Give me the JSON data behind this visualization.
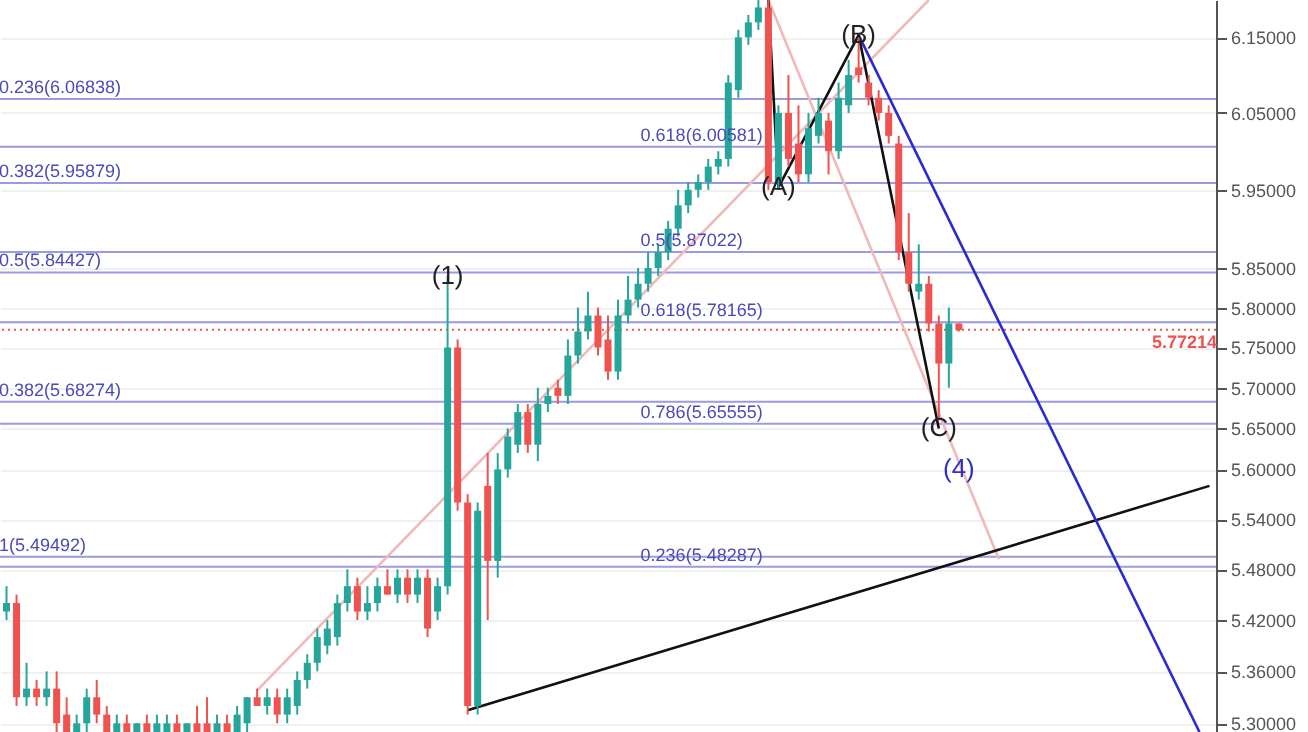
{
  "chart_data": {
    "type": "candlestick",
    "categories": [
      null,
      null,
      null,
      null,
      null,
      null,
      null,
      null,
      null,
      null,
      null,
      null,
      null,
      null,
      null,
      null,
      null,
      null,
      null,
      null,
      null,
      null,
      null,
      null,
      null,
      null,
      null,
      null,
      null,
      null,
      null,
      null,
      null,
      null,
      null,
      null,
      null,
      null,
      null,
      null,
      null,
      null,
      null,
      null,
      null,
      null,
      null,
      null,
      null,
      null,
      null,
      null,
      null,
      null,
      null,
      null,
      null,
      null,
      null,
      null,
      null,
      null,
      null,
      null,
      null,
      null,
      null,
      null,
      null,
      null,
      null,
      null,
      null,
      null,
      null,
      null,
      null,
      null,
      null,
      null,
      null,
      null,
      null,
      null,
      null,
      null,
      null,
      null,
      null,
      null,
      null,
      null,
      null,
      null,
      null,
      null,
      null,
      null,
      null,
      null,
      null,
      null,
      null,
      null,
      null,
      null,
      null,
      null,
      null,
      null,
      null,
      null,
      null,
      null,
      null,
      null,
      null,
      null,
      null,
      null,
      null
    ],
    "ohlc": [
      [
        5.43,
        5.46,
        5.42,
        5.44
      ],
      [
        5.44,
        5.45,
        5.32,
        5.33
      ],
      [
        5.33,
        5.37,
        5.32,
        5.34
      ],
      [
        5.34,
        5.35,
        5.32,
        5.33
      ],
      [
        5.33,
        5.36,
        5.32,
        5.34
      ],
      [
        5.34,
        5.36,
        5.29,
        5.3
      ],
      [
        5.31,
        5.33,
        5.29,
        5.29
      ],
      [
        5.29,
        5.31,
        5.29,
        5.3
      ],
      [
        5.3,
        5.34,
        5.29,
        5.33
      ],
      [
        5.33,
        5.35,
        5.3,
        5.31
      ],
      [
        5.31,
        5.32,
        5.29,
        5.29
      ],
      [
        5.29,
        5.31,
        5.29,
        5.3
      ],
      [
        5.3,
        5.31,
        5.29,
        5.29
      ],
      [
        5.29,
        5.3,
        5.29,
        5.3
      ],
      [
        5.3,
        5.31,
        5.29,
        5.29
      ],
      [
        5.29,
        5.31,
        5.29,
        5.3
      ],
      [
        5.29,
        5.31,
        5.29,
        5.3
      ],
      [
        5.3,
        5.31,
        5.29,
        5.29
      ],
      [
        5.29,
        5.3,
        5.29,
        5.3
      ],
      [
        5.3,
        5.32,
        5.29,
        5.29
      ],
      [
        5.3,
        5.33,
        5.29,
        5.29
      ],
      [
        5.29,
        5.31,
        5.29,
        5.3
      ],
      [
        5.3,
        5.31,
        5.29,
        5.29
      ],
      [
        5.29,
        5.32,
        5.29,
        5.31
      ],
      [
        5.3,
        5.33,
        5.29,
        5.33
      ],
      [
        5.33,
        5.34,
        5.32,
        5.32
      ],
      [
        5.32,
        5.34,
        5.31,
        5.33
      ],
      [
        5.33,
        5.34,
        5.3,
        5.31
      ],
      [
        5.31,
        5.34,
        5.3,
        5.33
      ],
      [
        5.32,
        5.36,
        5.31,
        5.35
      ],
      [
        5.35,
        5.38,
        5.34,
        5.37
      ],
      [
        5.37,
        5.41,
        5.36,
        5.4
      ],
      [
        5.39,
        5.42,
        5.38,
        5.41
      ],
      [
        5.4,
        5.45,
        5.39,
        5.44
      ],
      [
        5.44,
        5.48,
        5.43,
        5.46
      ],
      [
        5.46,
        5.47,
        5.42,
        5.43
      ],
      [
        5.43,
        5.46,
        5.42,
        5.44
      ],
      [
        5.44,
        5.47,
        5.43,
        5.46
      ],
      [
        5.46,
        5.48,
        5.45,
        5.45
      ],
      [
        5.45,
        5.48,
        5.44,
        5.47
      ],
      [
        5.47,
        5.48,
        5.44,
        5.45
      ],
      [
        5.45,
        5.48,
        5.44,
        5.47
      ],
      [
        5.47,
        5.48,
        5.4,
        5.41
      ],
      [
        5.43,
        5.47,
        5.42,
        5.46
      ],
      [
        5.46,
        5.84,
        5.45,
        5.75
      ],
      [
        5.75,
        5.76,
        5.55,
        5.56
      ],
      [
        5.56,
        5.57,
        5.31,
        5.32
      ],
      [
        5.32,
        5.56,
        5.31,
        5.55
      ],
      [
        5.58,
        5.62,
        5.42,
        5.49
      ],
      [
        5.49,
        5.62,
        5.47,
        5.6
      ],
      [
        5.6,
        5.65,
        5.59,
        5.64
      ],
      [
        5.63,
        5.68,
        5.62,
        5.67
      ],
      [
        5.67,
        5.68,
        5.62,
        5.63
      ],
      [
        5.63,
        5.7,
        5.61,
        5.68
      ],
      [
        5.68,
        5.7,
        5.67,
        5.69
      ],
      [
        5.7,
        5.71,
        5.68,
        5.69
      ],
      [
        5.69,
        5.76,
        5.68,
        5.74
      ],
      [
        5.74,
        5.8,
        5.73,
        5.77
      ],
      [
        5.77,
        5.82,
        5.76,
        5.79
      ],
      [
        5.79,
        5.8,
        5.74,
        5.75
      ],
      [
        5.76,
        5.79,
        5.71,
        5.72
      ],
      [
        5.72,
        5.81,
        5.71,
        5.79
      ],
      [
        5.79,
        5.84,
        5.78,
        5.81
      ],
      [
        5.81,
        5.85,
        5.8,
        5.83
      ],
      [
        5.83,
        5.87,
        5.82,
        5.85
      ],
      [
        5.85,
        5.88,
        5.84,
        5.87
      ],
      [
        5.87,
        5.91,
        5.86,
        5.9
      ],
      [
        5.9,
        5.95,
        5.89,
        5.93
      ],
      [
        5.93,
        5.96,
        5.92,
        5.95
      ],
      [
        5.95,
        5.97,
        5.94,
        5.96
      ],
      [
        5.96,
        5.99,
        5.95,
        5.98
      ],
      [
        5.98,
        6.0,
        5.97,
        5.99
      ],
      [
        5.99,
        6.1,
        5.98,
        6.09
      ],
      [
        6.08,
        6.16,
        6.07,
        6.15
      ],
      [
        6.15,
        6.18,
        6.14,
        6.17
      ],
      [
        6.17,
        6.2,
        6.16,
        6.19
      ],
      [
        6.19,
        6.2,
        5.95,
        5.96
      ],
      [
        5.96,
        6.06,
        5.95,
        6.05
      ],
      [
        6.05,
        6.1,
        5.98,
        5.99
      ],
      [
        6.01,
        6.06,
        5.96,
        5.97
      ],
      [
        5.97,
        6.05,
        5.96,
        6.03
      ],
      [
        6.02,
        6.07,
        6.01,
        6.05
      ],
      [
        6.04,
        6.05,
        5.97,
        6.0
      ],
      [
        6.0,
        6.09,
        5.99,
        6.07
      ],
      [
        6.06,
        6.12,
        6.05,
        6.1
      ],
      [
        6.11,
        6.15,
        6.09,
        6.1
      ],
      [
        6.09,
        6.1,
        6.06,
        6.07
      ],
      [
        6.07,
        6.08,
        6.04,
        6.05
      ],
      [
        6.05,
        6.06,
        6.01,
        6.02
      ],
      [
        6.01,
        6.02,
        5.86,
        5.87
      ],
      [
        5.87,
        5.92,
        5.82,
        5.83
      ],
      [
        5.82,
        5.88,
        5.81,
        5.83
      ],
      [
        5.83,
        5.84,
        5.77,
        5.78
      ],
      [
        5.78,
        5.79,
        5.66,
        5.73
      ],
      [
        5.73,
        5.8,
        5.7,
        5.78
      ],
      [
        5.78,
        5.78,
        5.77,
        5.772
      ],
      null,
      null,
      null,
      null,
      null,
      null,
      null,
      null,
      null,
      null,
      null,
      null,
      null,
      null,
      null,
      null,
      null,
      null,
      null,
      null,
      null,
      null,
      null,
      null,
      null
    ],
    "colors": [
      "#26a69a",
      "#ef5350",
      "#26a69a",
      "#ef5350",
      "#26a69a",
      "#ef5350",
      "#ef5350",
      "#26a69a",
      "#26a69a",
      "#ef5350",
      "#ef5350",
      "#26a69a",
      "#ef5350",
      "#26a69a",
      "#ef5350",
      "#26a69a",
      "#26a69a",
      "#ef5350",
      "#26a69a",
      "#ef5350",
      "#ef5350",
      "#26a69a",
      "#ef5350",
      "#26a69a",
      "#26a69a",
      "#ef5350",
      "#26a69a",
      "#ef5350",
      "#26a69a",
      "#26a69a",
      "#26a69a",
      "#26a69a",
      "#26a69a",
      "#26a69a",
      "#26a69a",
      "#ef5350",
      "#26a69a",
      "#26a69a",
      "#ef5350",
      "#26a69a",
      "#ef5350",
      "#26a69a",
      "#ef5350",
      "#26a69a",
      "#26a69a",
      "#ef5350",
      "#ef5350",
      "#26a69a",
      "#ef5350",
      "#26a69a",
      "#26a69a",
      "#26a69a",
      "#ef5350",
      "#26a69a",
      "#26a69a",
      "#ef5350",
      "#26a69a",
      "#26a69a",
      "#26a69a",
      "#ef5350",
      "#ef5350",
      "#26a69a",
      "#26a69a",
      "#26a69a",
      "#26a69a",
      "#26a69a",
      "#26a69a",
      "#26a69a",
      "#26a69a",
      "#26a69a",
      "#26a69a",
      "#26a69a",
      "#26a69a",
      "#26a69a",
      "#26a69a",
      "#26a69a",
      "#ef5350",
      "#26a69a",
      "#ef5350",
      "#ef5350",
      "#26a69a",
      "#26a69a",
      "#ef5350",
      "#26a69a",
      "#26a69a",
      "#ef5350",
      "#ef5350",
      "#ef5350",
      "#ef5350",
      "#ef5350",
      "#ef5350",
      "#26a69a",
      "#ef5350",
      "#ef5350",
      "#26a69a",
      "#ef5350",
      null,
      null,
      null,
      null,
      null,
      null,
      null,
      null,
      null,
      null,
      null,
      null,
      null,
      null,
      null,
      null,
      null,
      null,
      null,
      null,
      null,
      null,
      null,
      null,
      null
    ],
    "value_labels": [
      null,
      null,
      null,
      null,
      null,
      null,
      null,
      null,
      null,
      null,
      null,
      null,
      null,
      null,
      null,
      null,
      null,
      null,
      null,
      null,
      null,
      null,
      null,
      null,
      null,
      null,
      null,
      null,
      null,
      null,
      null,
      null,
      null,
      null,
      null,
      null,
      null,
      null,
      null,
      null,
      null,
      null,
      null,
      null,
      "(1)",
      null,
      null,
      null,
      null,
      null,
      null,
      null,
      null,
      null,
      null,
      null,
      null,
      null,
      null,
      null,
      null,
      null,
      null,
      null,
      null,
      null,
      null,
      null,
      null,
      null,
      null,
      null,
      null,
      null,
      null,
      null,
      null,
      null,
      null,
      null,
      null,
      null,
      null,
      null,
      null,
      null,
      null,
      null,
      null,
      null,
      null,
      null,
      null,
      null,
      null,
      null,
      null,
      null,
      null,
      null,
      null,
      null,
      null,
      null,
      null,
      null,
      null,
      null,
      null,
      null,
      null,
      null,
      null,
      null,
      null,
      null,
      null,
      null,
      null,
      null,
      null
    ],
    "series": [
      {
        "type": "line",
        "color": "#f2b8b8",
        "values": [
          null,
          null,
          null,
          null,
          null,
          null,
          null,
          null,
          null,
          null,
          null,
          null,
          null,
          null,
          null,
          null,
          null,
          null,
          null,
          null,
          null,
          null,
          null,
          null,
          null,
          5.338,
          null,
          null,
          null,
          null,
          null,
          null,
          null,
          null,
          null,
          null,
          null,
          null,
          null,
          null,
          null,
          null,
          null,
          null,
          null,
          null,
          null,
          null,
          null,
          null,
          null,
          null,
          null,
          null,
          null,
          null,
          null,
          null,
          null,
          null,
          null,
          null,
          null,
          null,
          null,
          null,
          null,
          null,
          null,
          null,
          null,
          null,
          null,
          null,
          null,
          null,
          null,
          null,
          null,
          null,
          null,
          null,
          null,
          null,
          null,
          null,
          null,
          null,
          null,
          null,
          null,
          null,
          6.2,
          null,
          null,
          null,
          null,
          null,
          null,
          null,
          null,
          null,
          null,
          null,
          null,
          null,
          null,
          null,
          null,
          null,
          null,
          null,
          null,
          null,
          null,
          null,
          null,
          null,
          null,
          null,
          null
        ]
      },
      {
        "type": "line",
        "color": "#f2b8b8",
        "values": [
          null,
          null,
          null,
          null,
          null,
          null,
          null,
          null,
          null,
          null,
          null,
          null,
          null,
          null,
          null,
          null,
          null,
          null,
          null,
          null,
          null,
          null,
          null,
          null,
          null,
          null,
          null,
          null,
          null,
          null,
          null,
          null,
          null,
          null,
          null,
          null,
          null,
          null,
          null,
          null,
          null,
          null,
          null,
          null,
          null,
          null,
          null,
          null,
          null,
          null,
          null,
          null,
          null,
          null,
          null,
          null,
          null,
          null,
          null,
          null,
          null,
          null,
          null,
          null,
          null,
          null,
          null,
          null,
          null,
          null,
          null,
          null,
          null,
          null,
          null,
          null,
          6.2,
          null,
          null,
          null,
          null,
          null,
          null,
          null,
          null,
          null,
          null,
          null,
          null,
          null,
          null,
          null,
          null,
          null,
          null,
          null,
          null,
          null,
          null,
          5.492,
          null,
          null,
          null,
          null,
          null,
          null,
          null,
          null,
          null,
          null,
          null,
          null,
          null,
          null,
          null,
          null,
          null,
          null,
          null,
          null,
          null
        ]
      },
      {
        "type": "line",
        "color": "#111111",
        "values": [
          null,
          null,
          null,
          null,
          null,
          null,
          null,
          null,
          null,
          null,
          null,
          null,
          null,
          null,
          null,
          null,
          null,
          null,
          null,
          null,
          null,
          null,
          null,
          null,
          null,
          null,
          null,
          null,
          null,
          null,
          null,
          null,
          null,
          null,
          null,
          null,
          null,
          null,
          null,
          null,
          null,
          null,
          null,
          null,
          null,
          null,
          5.315,
          null,
          null,
          null,
          null,
          null,
          null,
          null,
          null,
          null,
          null,
          null,
          null,
          null,
          null,
          null,
          null,
          null,
          null,
          null,
          null,
          null,
          null,
          null,
          null,
          null,
          null,
          null,
          null,
          null,
          null,
          null,
          null,
          null,
          null,
          null,
          null,
          null,
          null,
          null,
          null,
          null,
          null,
          null,
          null,
          null,
          null,
          null,
          null,
          null,
          null,
          null,
          null,
          null,
          null,
          null,
          null,
          null,
          null,
          null,
          null,
          null,
          null,
          null,
          null,
          null,
          null,
          null,
          null,
          null,
          null,
          null,
          null,
          null,
          5.58
        ]
      },
      {
        "type": "line",
        "color": "#2a2ad0",
        "values": [
          null,
          null,
          null,
          null,
          null,
          null,
          null,
          null,
          null,
          null,
          null,
          null,
          null,
          null,
          null,
          null,
          null,
          null,
          null,
          null,
          null,
          null,
          null,
          null,
          null,
          null,
          null,
          null,
          null,
          null,
          null,
          null,
          null,
          null,
          null,
          null,
          null,
          null,
          null,
          null,
          null,
          null,
          null,
          null,
          null,
          null,
          null,
          null,
          null,
          null,
          null,
          null,
          null,
          null,
          null,
          null,
          null,
          null,
          null,
          null,
          null,
          null,
          null,
          null,
          null,
          null,
          null,
          null,
          null,
          null,
          null,
          null,
          null,
          null,
          null,
          null,
          null,
          null,
          null,
          null,
          null,
          null,
          null,
          null,
          null,
          6.153,
          null,
          null,
          null,
          null,
          null,
          null,
          null,
          null,
          null,
          null,
          null,
          null,
          null,
          null,
          null,
          null,
          null,
          null,
          null,
          null,
          null,
          null,
          null,
          null,
          null,
          null,
          null,
          null,
          null,
          null,
          null,
          null,
          null,
          5.29,
          null
        ]
      },
      {
        "type": "line",
        "color": "#111111",
        "values": [
          null,
          null,
          null,
          null,
          null,
          null,
          null,
          null,
          null,
          null,
          null,
          null,
          null,
          null,
          null,
          null,
          null,
          null,
          null,
          null,
          null,
          null,
          null,
          null,
          null,
          null,
          null,
          null,
          null,
          null,
          null,
          null,
          null,
          null,
          null,
          null,
          null,
          null,
          null,
          null,
          null,
          null,
          null,
          null,
          null,
          null,
          null,
          null,
          null,
          null,
          null,
          null,
          null,
          null,
          null,
          null,
          null,
          null,
          null,
          null,
          null,
          null,
          null,
          null,
          null,
          null,
          null,
          null,
          null,
          null,
          null,
          null,
          null,
          null,
          null,
          null,
          6.2,
          5.953,
          null,
          null,
          null,
          null,
          null,
          null,
          null,
          6.153,
          null,
          null,
          null,
          null,
          null,
          null,
          null,
          5.65,
          null,
          null,
          null,
          null,
          null,
          null,
          null,
          null,
          null,
          null,
          null,
          null,
          null,
          null,
          null,
          null,
          null,
          null,
          null,
          null,
          null,
          null,
          null,
          null,
          null,
          null,
          null
        ],
        "value_labels": [
          null,
          null,
          null,
          null,
          null,
          null,
          null,
          null,
          null,
          null,
          null,
          null,
          null,
          null,
          null,
          null,
          null,
          null,
          null,
          null,
          null,
          null,
          null,
          null,
          null,
          null,
          null,
          null,
          null,
          null,
          null,
          null,
          null,
          null,
          null,
          null,
          null,
          null,
          null,
          null,
          null,
          null,
          null,
          null,
          null,
          null,
          null,
          null,
          null,
          null,
          null,
          null,
          null,
          null,
          null,
          null,
          null,
          null,
          null,
          null,
          null,
          null,
          null,
          null,
          null,
          null,
          null,
          null,
          null,
          null,
          null,
          null,
          null,
          null,
          null,
          null,
          null,
          "(A)",
          null,
          null,
          null,
          null,
          null,
          null,
          null,
          "(B)",
          null,
          null,
          null,
          null,
          null,
          null,
          null,
          "(C)",
          null,
          null,
          null,
          null,
          null,
          null,
          null,
          null,
          null,
          null,
          null,
          null,
          null,
          null,
          null,
          null,
          null,
          null,
          null,
          null,
          null,
          null,
          null,
          null,
          null,
          null,
          null
        ]
      }
    ],
    "ylim": [
      5.29,
      6.2
    ],
    "log": "y",
    "yticks": [
      {
        "value": 6.15,
        "label": "6.15000"
      },
      {
        "value": 6.05,
        "label": "6.05000"
      },
      {
        "value": 5.95,
        "label": "5.95000"
      },
      {
        "value": 5.85,
        "label": "5.85000"
      },
      {
        "value": 5.8,
        "label": "5.80000"
      },
      {
        "value": 5.75,
        "label": "5.75000"
      },
      {
        "value": 5.7,
        "label": "5.70000"
      },
      {
        "value": 5.65,
        "label": "5.65000"
      },
      {
        "value": 5.6,
        "label": "5.60000"
      },
      {
        "value": 5.54,
        "label": "5.54000"
      },
      {
        "value": 5.48,
        "label": "5.48000"
      },
      {
        "value": 5.42,
        "label": "5.42000"
      },
      {
        "value": 5.36,
        "label": "5.36000"
      },
      {
        "value": 5.3,
        "label": "5.30000"
      }
    ],
    "tick_labels": "y",
    "grid": "y",
    "ref_lines": [
      {
        "axis": "y",
        "value": 6.06838,
        "label": "0.236(6.06838)",
        "color": "#9a9ae0"
      },
      {
        "axis": "y",
        "value": 6.00581,
        "label": "0.618(6.00581)",
        "color": "#9a9ae0"
      },
      {
        "axis": "y",
        "value": 5.95879,
        "label": "0.382(5.95879)",
        "color": "#9a9ae0"
      },
      {
        "axis": "y",
        "value": 5.87022,
        "label": "0.5(5.87022)",
        "color": "#9a9ae0"
      },
      {
        "axis": "y",
        "value": 5.84427,
        "label": "0.5(5.84427)",
        "color": "#9a9ae0"
      },
      {
        "axis": "y",
        "value": 5.78165,
        "label": "0.618(5.78165)",
        "color": "#9a9ae0"
      },
      {
        "axis": "y",
        "value": 5.68274,
        "label": "0.382(5.68274)",
        "color": "#9a9ae0"
      },
      {
        "axis": "y",
        "value": 5.65555,
        "label": "0.786(5.65555)",
        "color": "#9a9ae0"
      },
      {
        "axis": "y",
        "value": 5.49492,
        "label": "1(5.49492)",
        "color": "#9a9ae0"
      },
      {
        "axis": "y",
        "value": 5.48287,
        "label": "0.236(5.48287)",
        "color": "#9a9ae0"
      },
      {
        "axis": "y",
        "value": 5.77214,
        "label": "5.77214",
        "color": "#ef5350",
        "line_style": "dotted"
      }
    ],
    "annotations": [
      {
        "text": "(4)",
        "y": 5.6
      }
    ]
  }
}
